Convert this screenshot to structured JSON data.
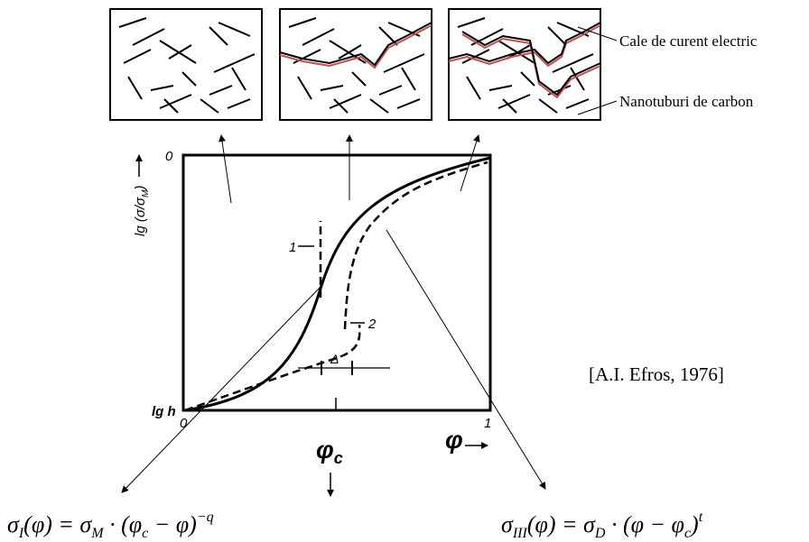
{
  "callouts": [
    "Cale de curent electric",
    "Nanotuburi de carbon"
  ],
  "plot": {
    "y_label": [
      "lg (σ/σ",
      "M",
      ")"
    ],
    "y_top": "0",
    "y_bottom": "lg h",
    "x_left": "0",
    "x_right": "1",
    "x_label": "φ",
    "curve_labels": [
      "1",
      "2"
    ],
    "delta": "Δ",
    "phi_c": [
      "φ",
      "c"
    ]
  },
  "citation": "[A.I. Efros, 1976]",
  "formulas": [
    [
      "σ",
      "I",
      "(φ) = σ",
      "M",
      " · (φ",
      "c",
      " − φ)",
      "−q"
    ],
    [
      "σ",
      "III",
      "(φ) = σ",
      "D",
      " · (φ − φ",
      "c",
      ")",
      "t"
    ]
  ]
}
